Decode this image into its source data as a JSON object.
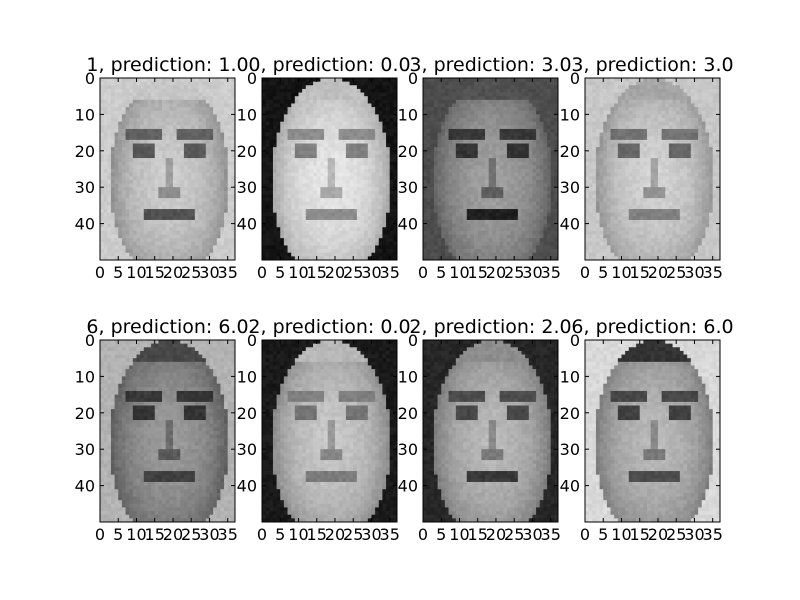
{
  "chart_data": {
    "type": "image-grid",
    "grid": {
      "rows": 2,
      "cols": 4
    },
    "image_shape": {
      "height": 50,
      "width": 37
    },
    "colormap": "gray",
    "axis_limits": {
      "x": [
        0,
        37
      ],
      "y": [
        50,
        0
      ]
    },
    "xticks": [
      0,
      5,
      10,
      15,
      20,
      25,
      30,
      35
    ],
    "yticks": [
      0,
      10,
      20,
      30,
      40
    ],
    "panels": [
      {
        "title": "1, prediction: 1.0",
        "true_label": 1,
        "predicted": 1.0,
        "face": {
          "base": 0.7,
          "brow": 0.38,
          "eyes": 0.35,
          "mouth": 0.32,
          "hair": 0.78,
          "bg": 0.8
        }
      },
      {
        "title": "0, prediction: 0.0",
        "true_label": 0,
        "predicted": 0.0,
        "face": {
          "base": 0.8,
          "brow": 0.55,
          "eyes": 0.5,
          "mouth": 0.55,
          "hair": 0.75,
          "bg": 0.08
        }
      },
      {
        "title": "3, prediction: 3.0",
        "true_label": 3,
        "predicted": 3.0,
        "face": {
          "base": 0.52,
          "brow": 0.22,
          "eyes": 0.2,
          "mouth": 0.12,
          "hair": 0.32,
          "bg": 0.3
        }
      },
      {
        "title": "3, prediction: 3.0",
        "true_label": 3,
        "predicted": 3.0,
        "face": {
          "base": 0.72,
          "brow": 0.45,
          "eyes": 0.4,
          "mouth": 0.5,
          "hair": 0.65,
          "bg": 0.78
        }
      },
      {
        "title": "6, prediction: 6.0",
        "true_label": 6,
        "predicted": 6.0,
        "face": {
          "base": 0.5,
          "brow": 0.22,
          "eyes": 0.2,
          "mouth": 0.25,
          "hair": 0.28,
          "bg": 0.7
        }
      },
      {
        "title": "2, prediction: 0.0",
        "true_label": 2,
        "predicted": 0.0,
        "face": {
          "base": 0.68,
          "brow": 0.5,
          "eyes": 0.45,
          "mouth": 0.48,
          "hair": 0.72,
          "bg": 0.1
        }
      },
      {
        "title": "2, prediction: 2.0",
        "true_label": 2,
        "predicted": 2.0,
        "face": {
          "base": 0.62,
          "brow": 0.3,
          "eyes": 0.28,
          "mouth": 0.22,
          "hair": 0.55,
          "bg": 0.15
        }
      },
      {
        "title": "6, prediction: 6.0",
        "true_label": 6,
        "predicted": 6.0,
        "face": {
          "base": 0.62,
          "brow": 0.28,
          "eyes": 0.25,
          "mouth": 0.3,
          "hair": 0.2,
          "bg": 0.85
        }
      }
    ]
  }
}
